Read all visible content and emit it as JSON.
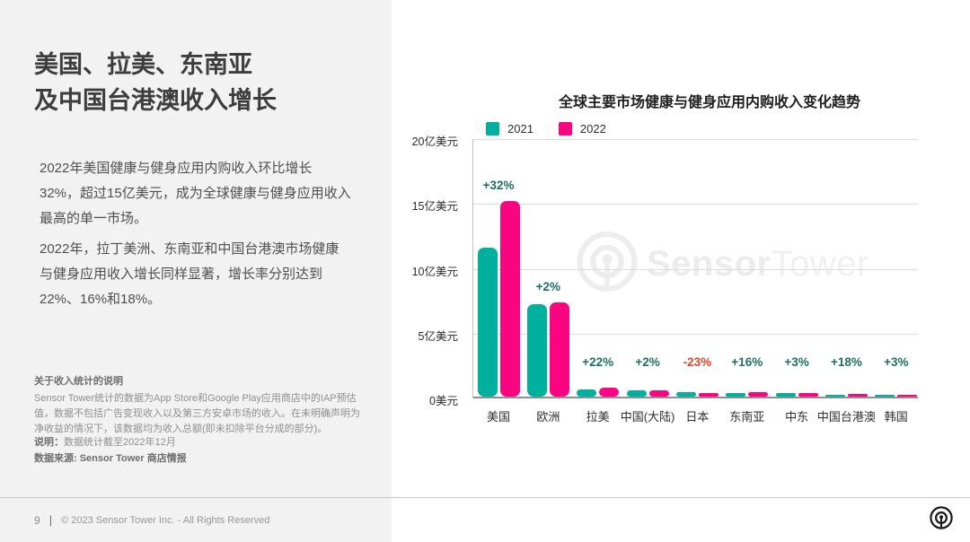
{
  "page": {
    "left_panel": {
      "title_line1": "美国、拉美、东南亚",
      "title_line2": "及中国台港澳收入增长",
      "paragraph1": "2022年美国健康与健身应用内购收入环比增长32%，超过15亿美元，成为全球健康与健身应用收入最高的单一市场。",
      "paragraph2": "2022年，拉丁美洲、东南亚和中国台港澳市场健康与健身应用收入增长同样显著，增长率分别达到22%、16%和18%。",
      "notes_heading": "关于收入统计的说明",
      "notes_body": "Sensor Tower统计的数据为App Store和Google Play应用商店中的IAP预估值，数据不包括广告变现收入以及第三方安卓市场的收入。在未明确声明为净收益的情况下，该数据均为收入总额(即未扣除平台分成的部分)。",
      "note_label": "说明：",
      "note_text": "数据统计截至2022年12月",
      "source_text": "数据来源: Sensor Tower 商店情报"
    },
    "footer": {
      "page_number": "9",
      "separator": "|",
      "copyright": "© 2023 Sensor Tower Inc. - All Rights Reserved"
    },
    "watermark": {
      "bold": "Sensor",
      "light": "Tower"
    }
  },
  "chart_data": {
    "type": "bar",
    "title": "全球主要市场健康与健身应用内购收入变化趋势",
    "unit": "亿美元",
    "ylim": [
      0,
      20
    ],
    "grid": true,
    "legend_position": "top-left",
    "categories": [
      "美国",
      "欧洲",
      "拉美",
      "中国(大陆)",
      "日本",
      "东南亚",
      "中东",
      "中国台港澳",
      "韩国"
    ],
    "series": [
      {
        "name": "2021",
        "color": "#00b09e",
        "values": [
          11.5,
          7.1,
          0.55,
          0.48,
          0.38,
          0.28,
          0.26,
          0.15,
          0.08
        ]
      },
      {
        "name": "2022",
        "color": "#fa0581",
        "values": [
          15.1,
          7.25,
          0.67,
          0.49,
          0.29,
          0.32,
          0.27,
          0.18,
          0.08
        ]
      }
    ],
    "growth_labels": [
      "+32%",
      "+2%",
      "+22%",
      "+2%",
      "-23%",
      "+16%",
      "+3%",
      "+18%",
      "+3%"
    ],
    "growth_positive_color": "#1e7061",
    "growth_negative_color": "#e8402a",
    "y_axis": {
      "ticks": [
        {
          "value": 20,
          "label": "20亿美元"
        },
        {
          "value": 15,
          "label": "15亿美元"
        },
        {
          "value": 10,
          "label": "10亿美元"
        },
        {
          "value": 5,
          "label": "5亿美元"
        },
        {
          "value": 0,
          "label": "0美元"
        }
      ]
    }
  }
}
